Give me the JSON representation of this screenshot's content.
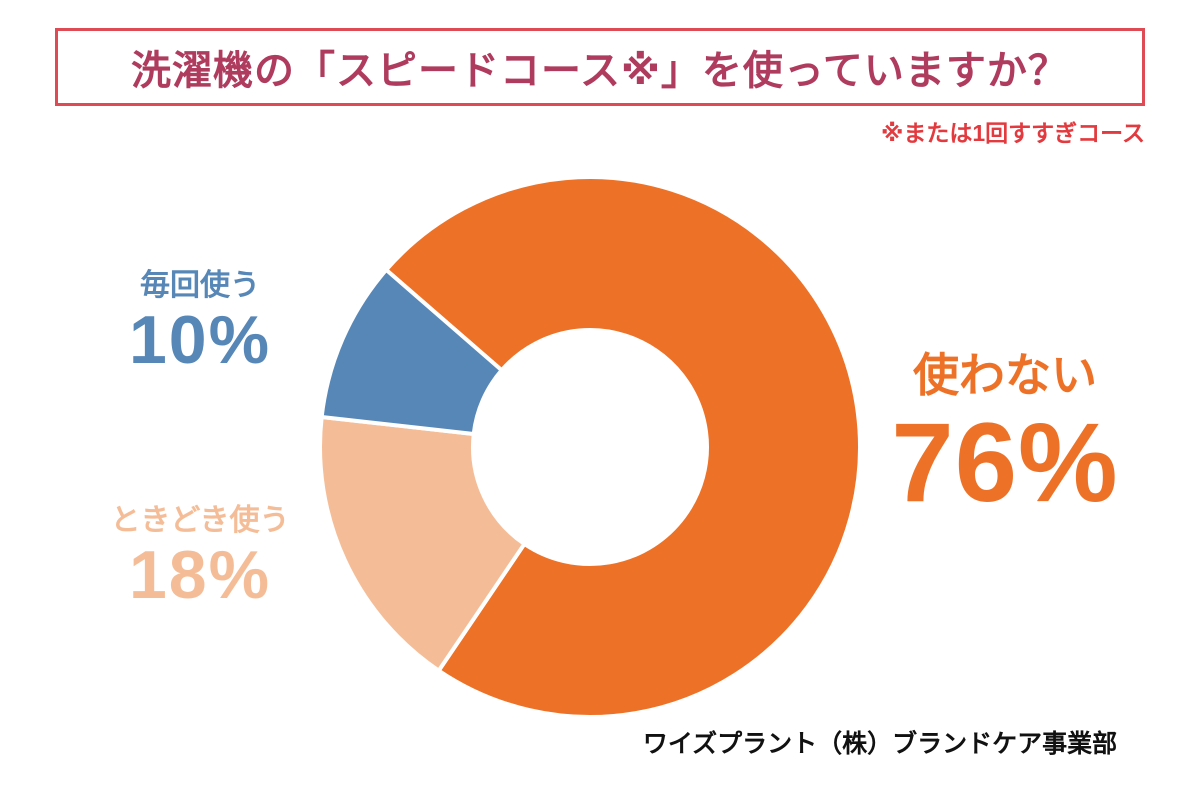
{
  "header": {
    "title": "洗濯機の「スピードコース※」を使っていますか？",
    "title_color": "#af3c5e",
    "border_color": "#de4b55",
    "note": "※または1回すすぎコース",
    "note_color": "#e23a3e"
  },
  "source": {
    "text": "ワイズプラント（株）ブランドケア事業部"
  },
  "chart_data": {
    "type": "pie",
    "subtype": "donut",
    "title": "洗濯機の「スピードコース※」を使っていますか？",
    "slices": [
      {
        "label": "使わない",
        "value": 76,
        "display": "76%",
        "color": "#ed7227"
      },
      {
        "label": "ときどき使う",
        "value": 18,
        "display": "18%",
        "color": "#f5bd97"
      },
      {
        "label": "毎回使う",
        "value": 10,
        "display": "10%",
        "color": "#5787b7"
      }
    ],
    "start_angle_deg": 311,
    "direction": "clockwise",
    "inner_radius_ratio": 0.43,
    "gap_color": "#ffffff",
    "legend": "labels with percentages placed around donut"
  }
}
